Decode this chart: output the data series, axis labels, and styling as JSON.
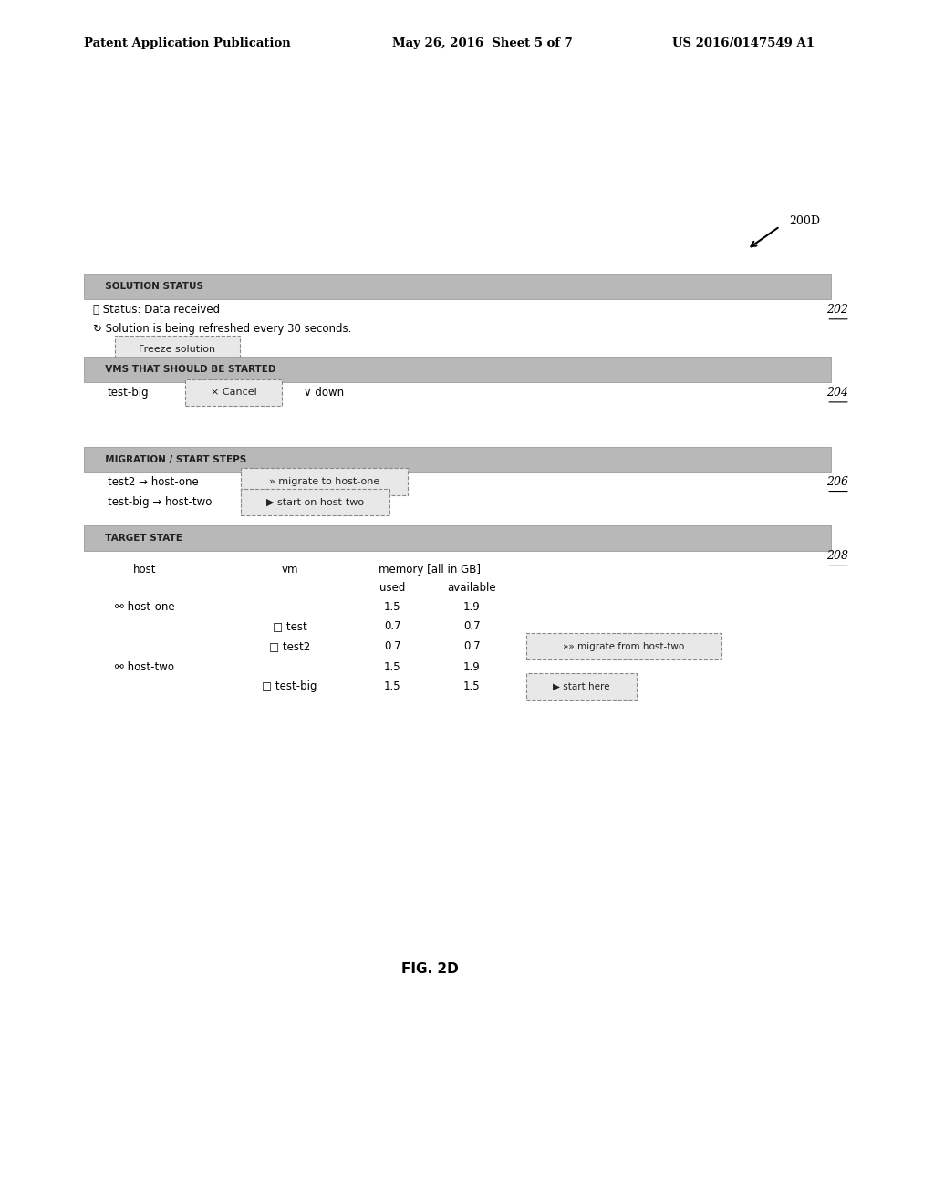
{
  "bg_color": "#ffffff",
  "header_left": "Patent Application Publication",
  "header_mid": "May 26, 2016  Sheet 5 of 7",
  "header_right": "US 2016/0147549 A1",
  "fig_caption": "FIG. 2D",
  "arrow_label": "200D",
  "freeze_btn": "Freeze solution"
}
